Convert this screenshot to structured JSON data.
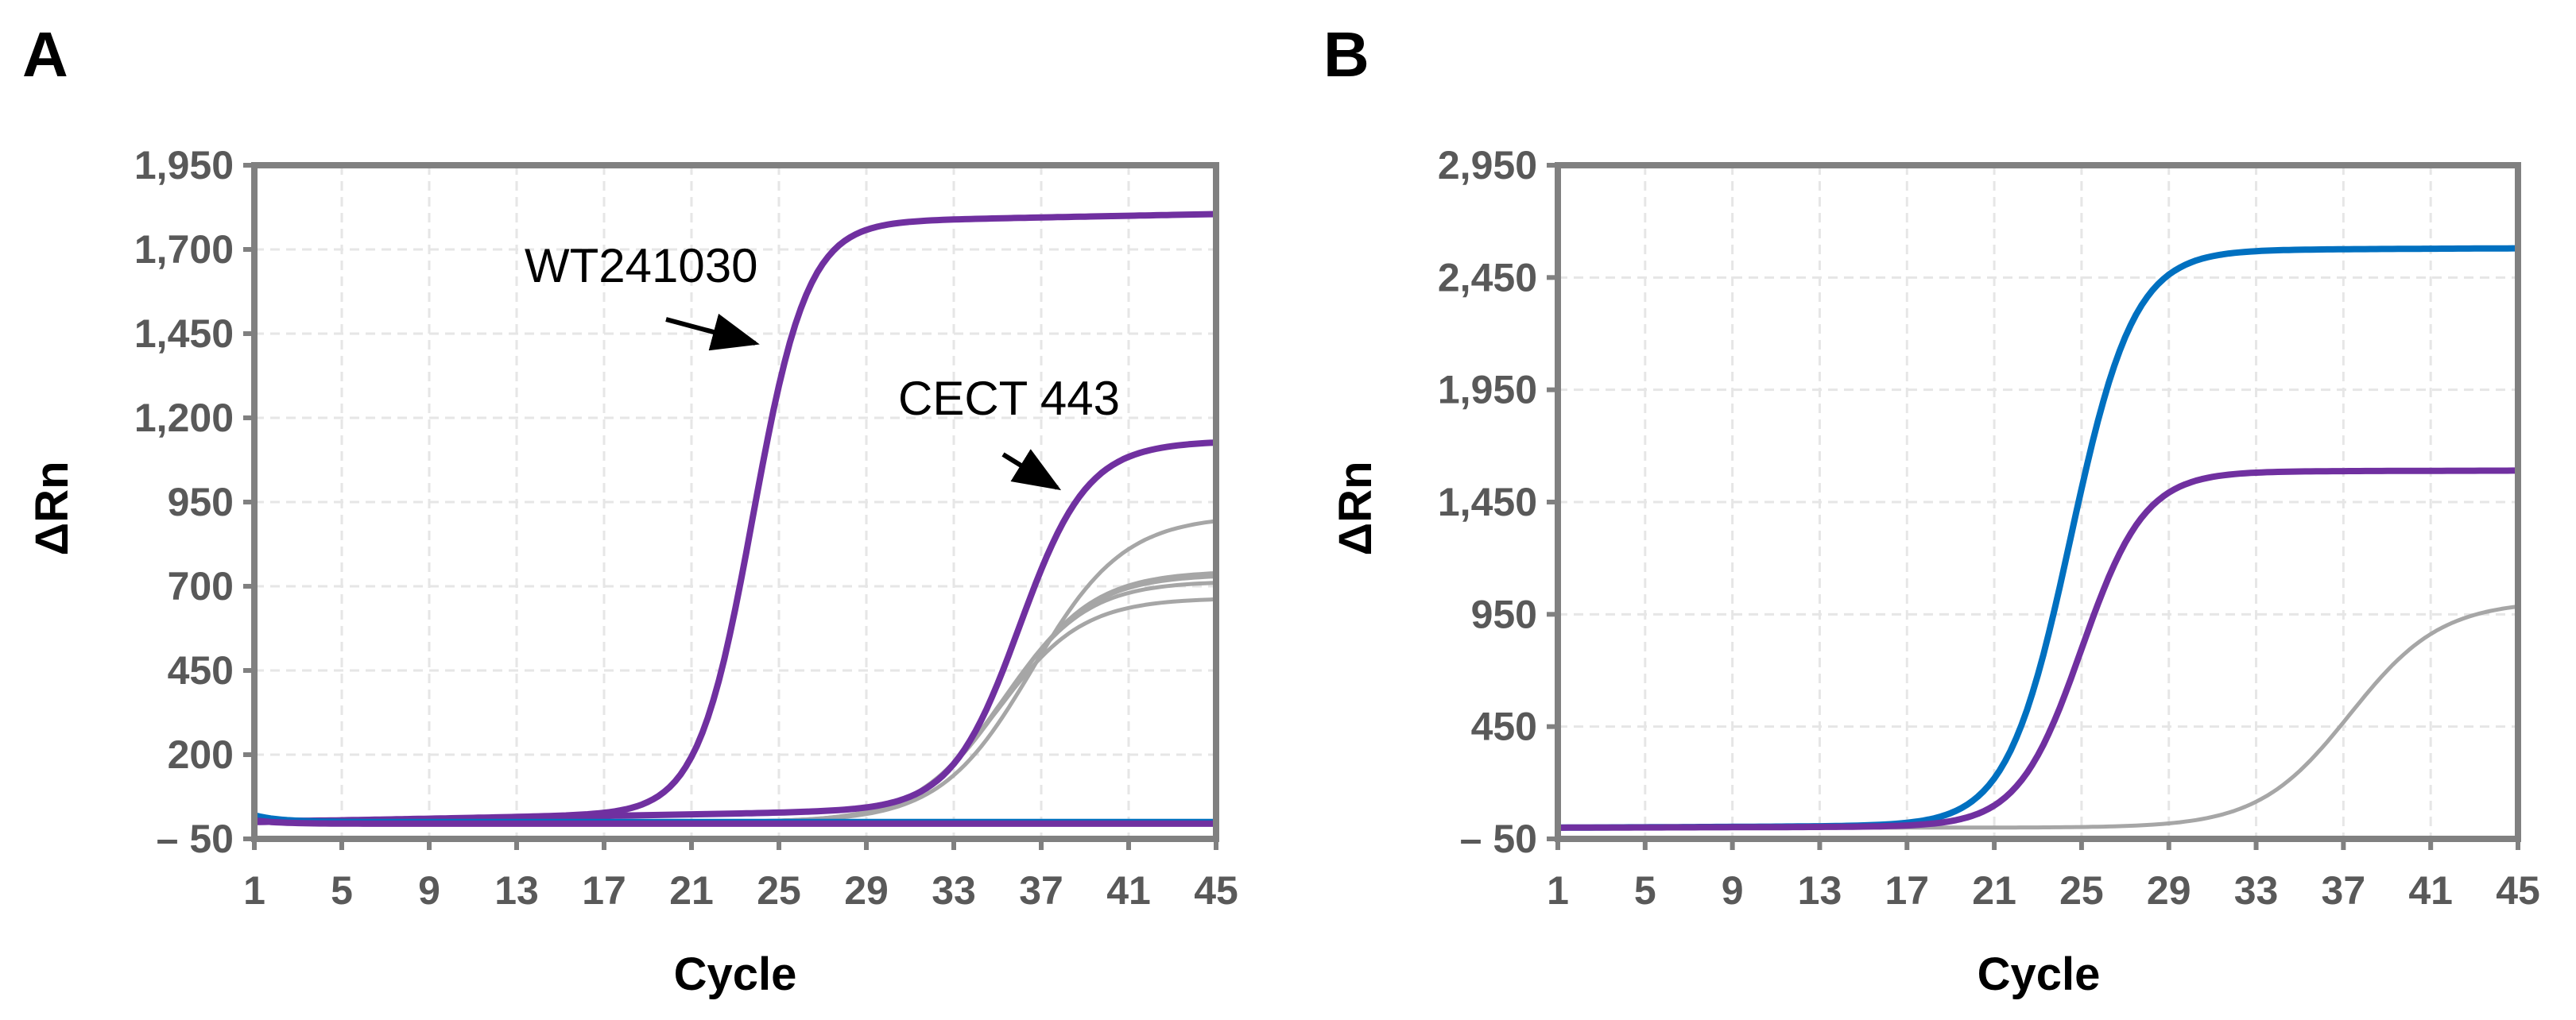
{
  "panels": [
    {
      "label": "A",
      "annotations": [
        {
          "text": "WT241030",
          "points_to": {
            "x": 24.5,
            "y": 1450
          }
        },
        {
          "text": "CECT 443",
          "points_to": {
            "x": 40,
            "y": 1000
          }
        }
      ]
    },
    {
      "label": "B",
      "annotations": []
    }
  ],
  "colors": {
    "purple": "#7030A0",
    "blue": "#0070C0",
    "gray": "#A6A6A6",
    "axis": "#808080",
    "tick_text": "#595959"
  },
  "chart_data": [
    {
      "type": "line",
      "xlabel": "Cycle",
      "ylabel": "ΔRn",
      "xlim": [
        1,
        45
      ],
      "ylim": [
        -50,
        1950
      ],
      "x_ticks": [
        1,
        5,
        9,
        13,
        17,
        21,
        25,
        29,
        33,
        37,
        41,
        45
      ],
      "y_ticks": [
        -50,
        200,
        450,
        700,
        950,
        1200,
        1450,
        1700,
        1950
      ],
      "y_tick_labels": [
        "– 50",
        "200",
        "450",
        "700",
        "950",
        "1,200",
        "1,450",
        "1,700",
        "1,950"
      ],
      "grid": true,
      "series": [
        {
          "name": "WT241030",
          "color": "#7030A0",
          "baseline": 0,
          "plateau": 1750,
          "midpoint": 23.8,
          "slope": 1.25,
          "drift": 55,
          "start_bump": 8
        },
        {
          "name": "CECT 443",
          "color": "#7030A0",
          "baseline": 0,
          "plateau": 1080,
          "midpoint": 36.0,
          "slope": 1.55,
          "drift": 50,
          "start_bump": 0
        },
        {
          "color": "#A6A6A6",
          "baseline": 0,
          "plateau": 910,
          "midpoint": 36.6,
          "slope": 2.1,
          "drift": 0,
          "start_bump": 0
        },
        {
          "color": "#A6A6A6",
          "baseline": 0,
          "plateau": 745,
          "midpoint": 35.4,
          "slope": 2.0,
          "drift": 0,
          "start_bump": 0
        },
        {
          "color": "#A6A6A6",
          "baseline": 0,
          "plateau": 735,
          "midpoint": 35.3,
          "slope": 2.0,
          "drift": 0,
          "start_bump": 0
        },
        {
          "color": "#A6A6A6",
          "baseline": 0,
          "plateau": 715,
          "midpoint": 35.2,
          "slope": 1.95,
          "drift": 0,
          "start_bump": 0
        },
        {
          "color": "#A6A6A6",
          "baseline": 0,
          "plateau": 665,
          "midpoint": 35.0,
          "slope": 1.95,
          "drift": 0,
          "start_bump": 0
        },
        {
          "color": "#0070C0",
          "baseline": 0,
          "plateau": 0,
          "midpoint": 30,
          "slope": 1,
          "drift": 0,
          "start_bump": 20
        },
        {
          "color": "#7030A0",
          "baseline": -5,
          "plateau": 0,
          "midpoint": 30,
          "slope": 1,
          "drift": 0,
          "start_bump": 10
        }
      ]
    },
    {
      "type": "line",
      "xlabel": "Cycle",
      "ylabel": "ΔRn",
      "xlim": [
        1,
        45
      ],
      "ylim": [
        -50,
        2950
      ],
      "x_ticks": [
        1,
        5,
        9,
        13,
        17,
        21,
        25,
        29,
        33,
        37,
        41,
        45
      ],
      "y_ticks": [
        -50,
        450,
        950,
        1450,
        1950,
        2450,
        2950
      ],
      "y_tick_labels": [
        "– 50",
        "450",
        "950",
        "1,450",
        "1,950",
        "2,450",
        "2,950"
      ],
      "grid": true,
      "series": [
        {
          "color": "#0070C0",
          "baseline": 0,
          "plateau": 2560,
          "midpoint": 24.5,
          "slope": 1.45,
          "drift": 20,
          "start_bump": 0
        },
        {
          "color": "#7030A0",
          "baseline": 0,
          "plateau": 1580,
          "midpoint": 25.0,
          "slope": 1.45,
          "drift": 10,
          "start_bump": 0
        },
        {
          "color": "#A6A6A6",
          "baseline": 0,
          "plateau": 1010,
          "midpoint": 37.3,
          "slope": 2.1,
          "drift": 0,
          "start_bump": 0
        }
      ]
    }
  ]
}
